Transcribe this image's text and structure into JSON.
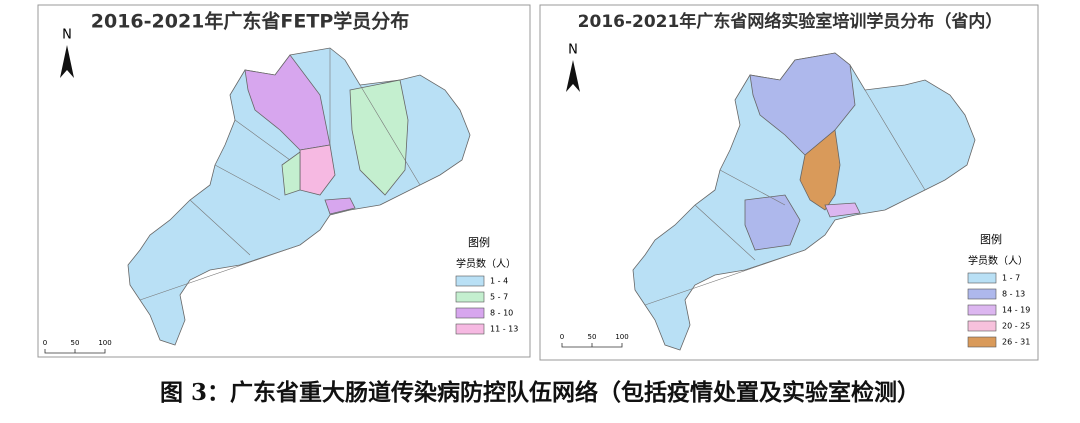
{
  "left_map": {
    "title": "2016-2021年广东省FETP学员分布",
    "north": "N",
    "legend": {
      "title": "图例",
      "subtitle": "学员数（人）",
      "items": [
        {
          "label": "1 - 4",
          "color": "#b9e0f5"
        },
        {
          "label": "5 - 7",
          "color": "#c4efcf"
        },
        {
          "label": "8 - 10",
          "color": "#d7a6ee"
        },
        {
          "label": "11 - 13",
          "color": "#f6b9e2"
        }
      ]
    },
    "scale": [
      "0",
      "50",
      "100"
    ]
  },
  "right_map": {
    "title": "2016-2021年广东省网络实验室培训学员分布（省内）",
    "north": "N",
    "legend": {
      "title": "图例",
      "subtitle": "学员数（人）",
      "items": [
        {
          "label": "1 - 7",
          "color": "#b9e0f5"
        },
        {
          "label": "8 - 13",
          "color": "#aeb8ec"
        },
        {
          "label": "14 - 19",
          "color": "#dcb6f0"
        },
        {
          "label": "20 - 25",
          "color": "#f7c1dc"
        },
        {
          "label": "26 - 31",
          "color": "#d99a5a"
        }
      ]
    },
    "scale": [
      "0",
      "50",
      "100"
    ]
  },
  "caption": "图 3：广东省重大肠道传染病防控队伍网络（包括疫情处置及实验室检测）"
}
